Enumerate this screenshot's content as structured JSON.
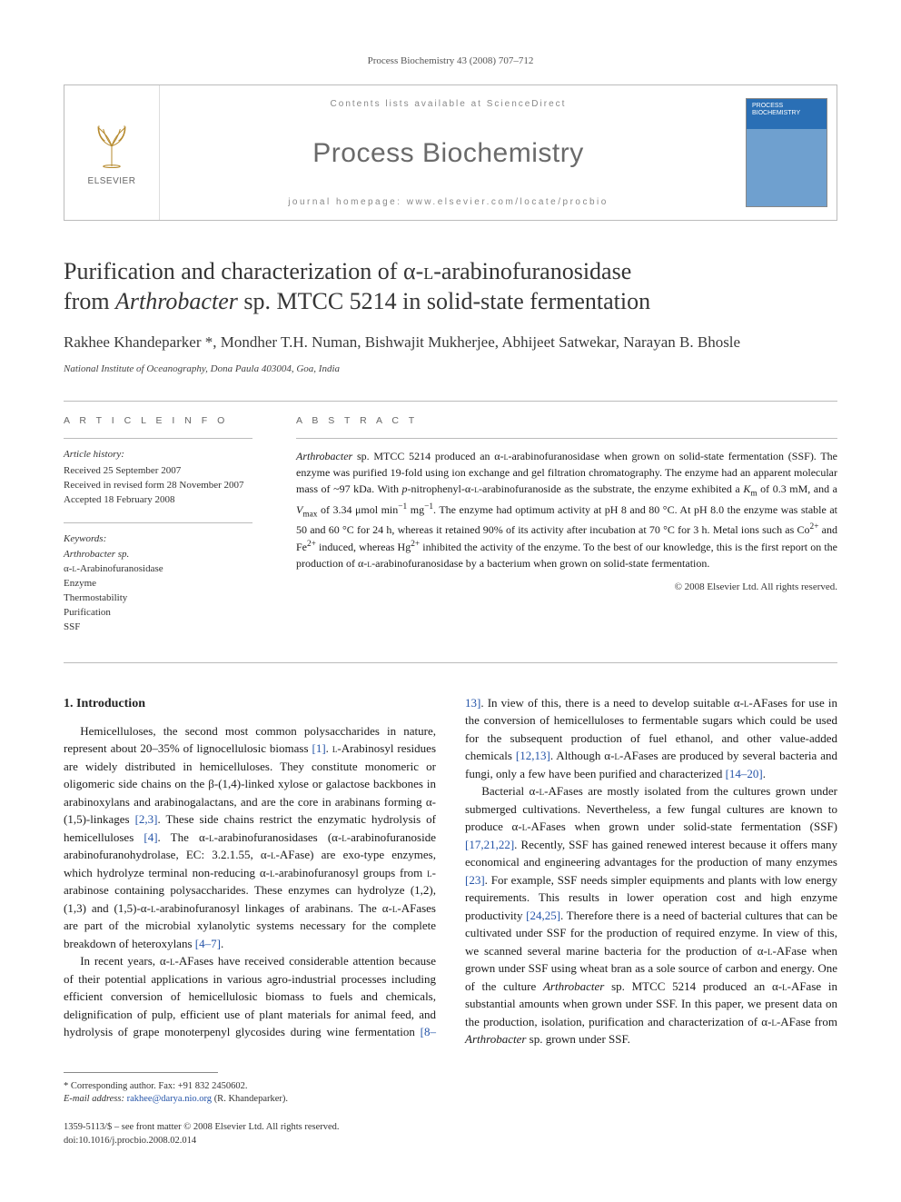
{
  "running_head": "Process Biochemistry 43 (2008) 707–712",
  "masthead": {
    "contents_line_a": "Contents lists available at",
    "contents_line_b": "ScienceDirect",
    "journal": "Process Biochemistry",
    "homepage_label": "journal homepage: www.elsevier.com/locate/procbio",
    "publisher_label": "ELSEVIER",
    "cover_text": "PROCESS BIOCHEMISTRY"
  },
  "title_line1": "Purification and characterization of α-",
  "title_line1_sc": "l",
  "title_line1b": "-arabinofuranosidase",
  "title_line2_a": "from ",
  "title_line2_i": "Arthrobacter",
  "title_line2_b": " sp. MTCC 5214 in solid-state fermentation",
  "authors": "Rakhee Khandeparker *, Mondher T.H. Numan, Bishwajit Mukherjee, Abhijeet Satwekar, Narayan B. Bhosle",
  "affiliation": "National Institute of Oceanography, Dona Paula 403004, Goa, India",
  "article_info": {
    "heading": "A R T I C L E   I N F O",
    "history_head": "Article history:",
    "history": [
      "Received 25 September 2007",
      "Received in revised form 28 November 2007",
      "Accepted 18 February 2008"
    ],
    "keywords_head": "Keywords:",
    "keywords": [
      "Arthrobacter sp.",
      "α-L-Arabinofuranosidase",
      "Enzyme",
      "Thermostability",
      "Purification",
      "SSF"
    ]
  },
  "abstract": {
    "heading": "A B S T R A C T",
    "text": "Arthrobacter sp. MTCC 5214 produced an α-L-arabinofuranosidase when grown on solid-state fermentation (SSF). The enzyme was purified 19-fold using ion exchange and gel filtration chromatography. The enzyme had an apparent molecular mass of ~97 kDa. With p-nitrophenyl-α-L-arabinofuranoside as the substrate, the enzyme exhibited a Km of 0.3 mM, and a Vmax of 3.34 μmol min⁻¹ mg⁻¹. The enzyme had optimum activity at pH 8 and 80 °C. At pH 8.0 the enzyme was stable at 50 and 60 °C for 24 h, whereas it retained 90% of its activity after incubation at 70 °C for 3 h. Metal ions such as Co²⁺ and Fe²⁺ induced, whereas Hg²⁺ inhibited the activity of the enzyme. To the best of our knowledge, this is the first report on the production of α-L-arabinofuranosidase by a bacterium when grown on solid-state fermentation.",
    "copyright": "© 2008 Elsevier Ltd. All rights reserved."
  },
  "body": {
    "section_heading": "1. Introduction",
    "p1": "Hemicelluloses, the second most common polysaccharides in nature, represent about 20–35% of lignocellulosic biomass [1]. L-Arabinosyl residues are widely distributed in hemicelluloses. They constitute monomeric or oligomeric side chains on the β-(1,4)-linked xylose or galactose backbones in arabinoxylans and arabinogalactans, and are the core in arabinans forming α-(1,5)-linkages [2,3]. These side chains restrict the enzymatic hydrolysis of hemicelluloses [4]. The α-L-arabinofuranosidases (α-L-arabinofuranoside arabinofuranohydrolase, EC: 3.2.1.55, α-L-AFase) are exo-type enzymes, which hydrolyze terminal non-reducing α-L-arabinofuranosyl groups from L-arabinose containing polysaccharides. These enzymes can hydrolyze (1,2), (1,3) and (1,5)-α-L-arabinofuranosyl linkages of arabinans. The α-L-AFases are part of the microbial xylanolytic systems necessary for the complete breakdown of heteroxylans [4–7].",
    "p2": "In recent years, α-L-AFases have received considerable attention because of their potential applications in various agro-industrial processes including efficient conversion of hemicellulosic biomass to fuels and chemicals, delignification of pulp, efficient use of plant materials for animal feed, and hydrolysis of grape monoterpenyl glycosides during wine fermentation [8–13]. In view of this, there is a need to develop suitable α-L-AFases for use in the conversion of hemicelluloses to fermentable sugars which could be used for the subsequent production of fuel ethanol, and other value-added chemicals [12,13]. Although α-L-AFases are produced by several bacteria and fungi, only a few have been purified and characterized [14–20].",
    "p3": "Bacterial α-L-AFases are mostly isolated from the cultures grown under submerged cultivations. Nevertheless, a few fungal cultures are known to produce α-L-AFases when grown under solid-state fermentation (SSF) [17,21,22]. Recently, SSF has gained renewed interest because it offers many economical and engineering advantages for the production of many enzymes [23]. For example, SSF needs simpler equipments and plants with low energy requirements. This results in lower operation cost and high enzyme productivity [24,25]. Therefore there is a need of bacterial cultures that can be cultivated under SSF for the production of required enzyme. In view of this, we scanned several marine bacteria for the production of α-L-AFase when grown under SSF using wheat bran as a sole source of carbon and energy. One of the culture Arthrobacter sp. MTCC 5214 produced an α-L-AFase in substantial amounts when grown under SSF. In this paper, we present data on the production, isolation, purification and characterization of α-L-AFase from Arthrobacter sp. grown under SSF."
  },
  "footnote": {
    "corr": "* Corresponding author. Fax: +91 832 2450602.",
    "email_label": "E-mail address:",
    "email": "rakhee@darya.nio.org",
    "email_tail": " (R. Khandeparker)."
  },
  "copyright_block": {
    "line1": "1359-5113/$ – see front matter © 2008 Elsevier Ltd. All rights reserved.",
    "line2": "doi:10.1016/j.procbio.2008.02.014"
  },
  "colors": {
    "link": "#2554a8",
    "rule": "#bbbbbb",
    "muted": "#666666"
  }
}
